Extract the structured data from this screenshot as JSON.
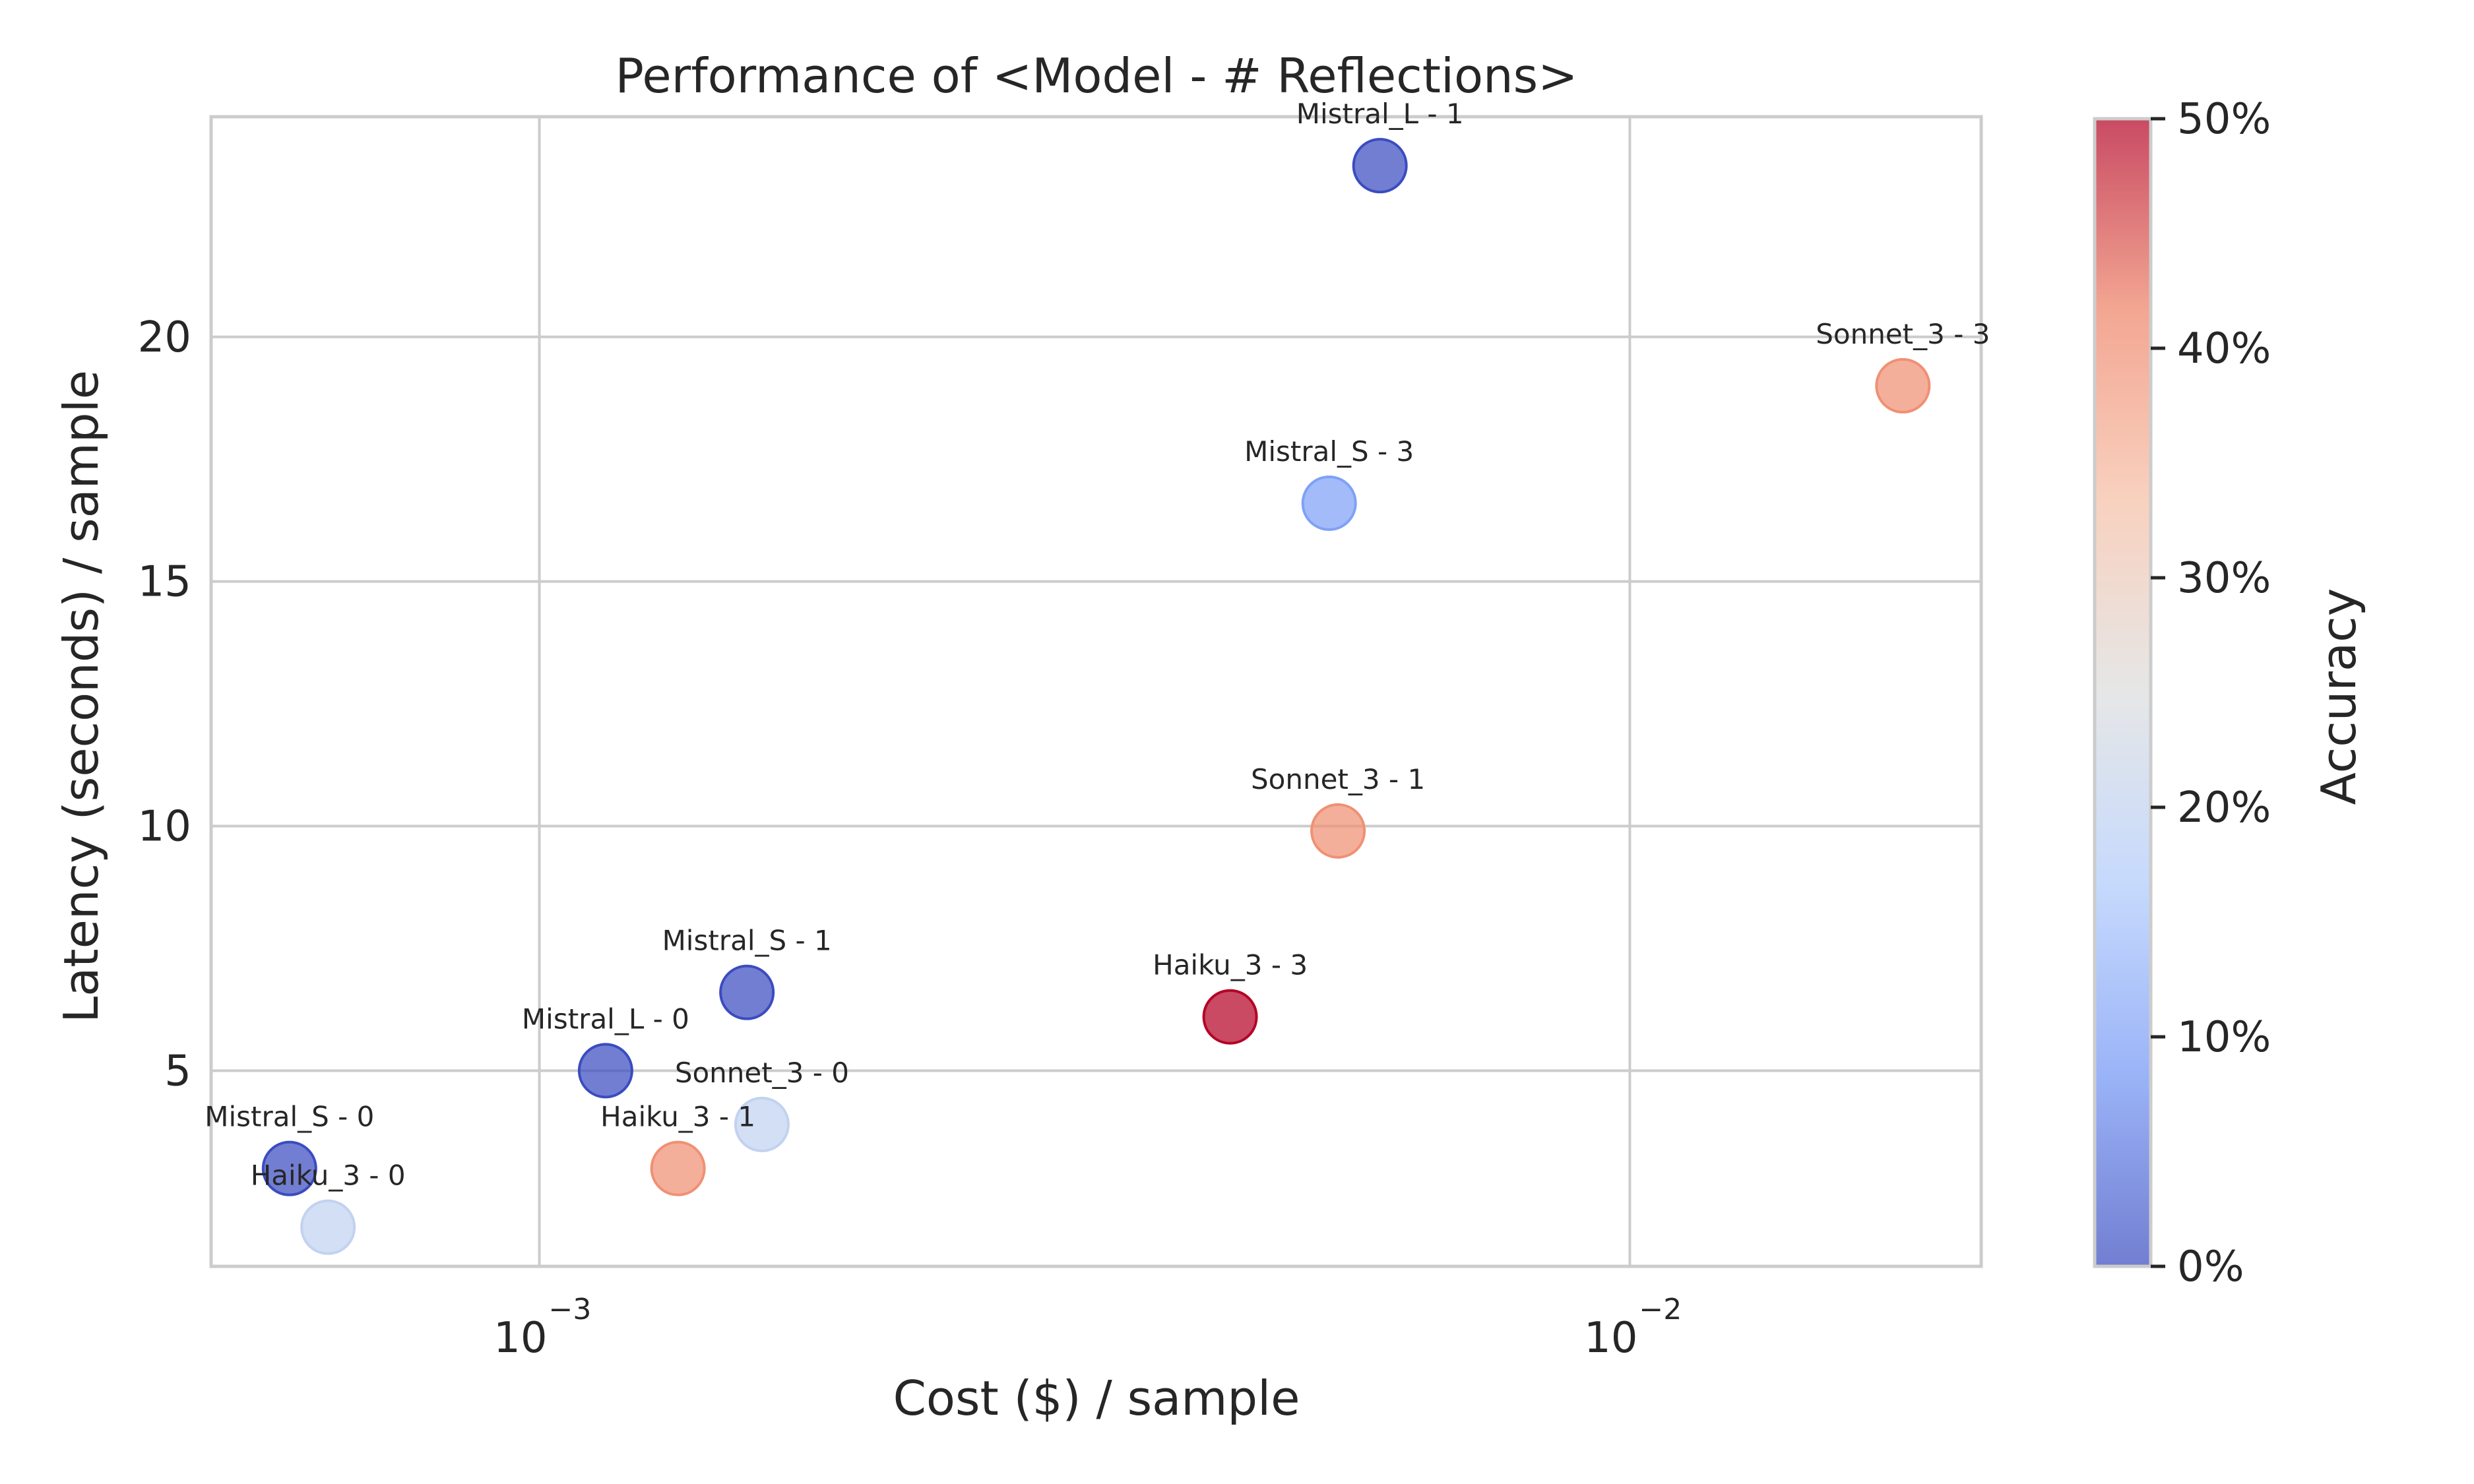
{
  "chart_data": {
    "type": "scatter",
    "title": "Performance of <Model - # Reflections>",
    "xlabel": "Cost ($) / sample",
    "ylabel": "Latency (seconds) / sample",
    "x_scale": "log",
    "xlim": [
      0.0005,
      0.021
    ],
    "ylim": [
      1.0,
      24.5
    ],
    "x_ticks": [
      {
        "value": 0.001,
        "base": "10",
        "exp": "−3"
      },
      {
        "value": 0.01,
        "base": "10",
        "exp": "−2"
      }
    ],
    "y_ticks": [
      5,
      10,
      15,
      20
    ],
    "grid": true,
    "colorbar": {
      "label": "Accuracy",
      "range": [
        0,
        0.5
      ],
      "ticks": [
        "0%",
        "10%",
        "20%",
        "30%",
        "40%",
        "50%"
      ],
      "colormap": "coolwarm",
      "colors": [
        "#3b4cc0",
        "#7396f5",
        "#b0cbfc",
        "#dcdddd",
        "#f6bfa6",
        "#ee8468",
        "#b40426"
      ]
    },
    "points": [
      {
        "label": "Mistral_L - 1",
        "x": 0.0059,
        "y": 23.5,
        "accuracy": 0.0
      },
      {
        "label": "Sonnet_3 - 3",
        "x": 0.0178,
        "y": 19.0,
        "accuracy": 0.4
      },
      {
        "label": "Mistral_S - 3",
        "x": 0.0053,
        "y": 16.6,
        "accuracy": 0.1
      },
      {
        "label": "Sonnet_3 - 1",
        "x": 0.0054,
        "y": 9.9,
        "accuracy": 0.4
      },
      {
        "label": "Haiku_3 - 3",
        "x": 0.0043,
        "y": 6.1,
        "accuracy": 0.5
      },
      {
        "label": "Mistral_S - 1",
        "x": 0.00155,
        "y": 6.6,
        "accuracy": 0.0
      },
      {
        "label": "Mistral_L - 0",
        "x": 0.00115,
        "y": 5.0,
        "accuracy": 0.0
      },
      {
        "label": "Sonnet_3 - 0",
        "x": 0.0016,
        "y": 3.9,
        "accuracy": 0.2
      },
      {
        "label": "Haiku_3 - 1",
        "x": 0.00134,
        "y": 3.0,
        "accuracy": 0.4
      },
      {
        "label": "Mistral_S - 0",
        "x": 0.00059,
        "y": 3.0,
        "accuracy": 0.0
      },
      {
        "label": "Haiku_3 - 0",
        "x": 0.00064,
        "y": 1.8,
        "accuracy": 0.2
      }
    ]
  }
}
